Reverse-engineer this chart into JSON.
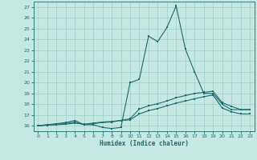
{
  "xlabel": "Humidex (Indice chaleur)",
  "bg_color": "#c5e8e2",
  "grid_color": "#9fcfc8",
  "line_color": "#1a6b6b",
  "xlim": [
    -0.5,
    23.5
  ],
  "ylim": [
    15.5,
    27.5
  ],
  "xticks": [
    0,
    1,
    2,
    3,
    4,
    5,
    6,
    7,
    8,
    9,
    10,
    11,
    12,
    13,
    14,
    15,
    16,
    17,
    18,
    19,
    20,
    21,
    22,
    23
  ],
  "yticks": [
    16,
    17,
    18,
    19,
    20,
    21,
    22,
    23,
    24,
    25,
    26,
    27
  ],
  "line1_x": [
    0,
    1,
    2,
    3,
    4,
    5,
    6,
    7,
    8,
    9,
    10,
    11,
    12,
    13,
    14,
    15,
    16,
    17,
    18,
    19,
    20,
    21,
    22,
    23
  ],
  "line1_y": [
    16.0,
    16.1,
    16.2,
    16.3,
    16.5,
    16.1,
    16.1,
    15.85,
    15.75,
    15.85,
    20.0,
    20.3,
    24.3,
    23.8,
    25.1,
    27.1,
    23.1,
    21.0,
    19.0,
    19.0,
    18.0,
    17.5,
    17.5,
    17.5
  ],
  "line2_x": [
    0,
    1,
    2,
    3,
    4,
    5,
    6,
    7,
    8,
    9,
    10,
    11,
    12,
    13,
    14,
    15,
    16,
    17,
    18,
    19,
    20,
    21,
    22,
    23
  ],
  "line2_y": [
    16.0,
    16.1,
    16.15,
    16.2,
    16.35,
    16.1,
    16.2,
    16.3,
    16.35,
    16.5,
    16.65,
    17.55,
    17.85,
    18.05,
    18.3,
    18.6,
    18.8,
    19.0,
    19.1,
    19.2,
    18.15,
    17.8,
    17.5,
    17.5
  ],
  "line3_x": [
    0,
    1,
    2,
    3,
    4,
    5,
    6,
    7,
    8,
    9,
    10,
    11,
    12,
    13,
    14,
    15,
    16,
    17,
    18,
    19,
    20,
    21,
    22,
    23
  ],
  "line3_y": [
    16.0,
    16.05,
    16.1,
    16.15,
    16.25,
    16.15,
    16.25,
    16.35,
    16.4,
    16.5,
    16.55,
    17.1,
    17.4,
    17.6,
    17.85,
    18.1,
    18.3,
    18.5,
    18.7,
    18.85,
    17.65,
    17.3,
    17.1,
    17.1
  ]
}
